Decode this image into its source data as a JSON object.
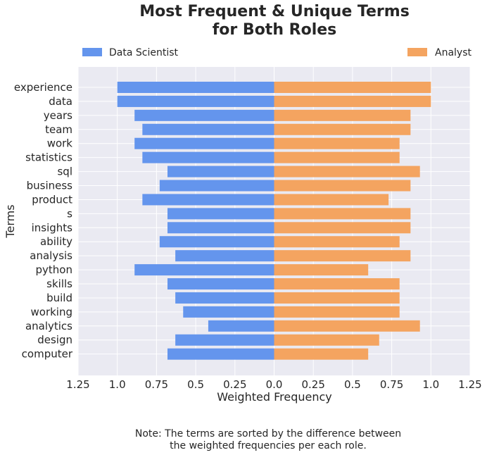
{
  "chart_data": {
    "type": "bar",
    "orientation": "horizontal-diverging",
    "title_lines": [
      "Most Frequent & Unique Terms",
      "for Both Roles"
    ],
    "xlabel": "Weighted Frequency",
    "ylabel": "Terms",
    "xlim": [
      -1.25,
      1.25
    ],
    "x_ticks": [
      -1.25,
      -1.0,
      -0.75,
      -0.5,
      -0.25,
      0.0,
      0.25,
      0.5,
      0.75,
      1.0,
      1.25
    ],
    "x_tick_labels": [
      "1.25",
      "1.0",
      "0.75",
      "0.5",
      "0.25",
      "0.0",
      "0.25",
      "0.5",
      "0.75",
      "1.0",
      "1.25"
    ],
    "grid": true,
    "legend_placement": "top, split left and right",
    "categories": [
      "experience",
      "data",
      "years",
      "team",
      "work",
      "statistics",
      "sql",
      "business",
      "product",
      "s",
      "insights",
      "ability",
      "analysis",
      "python",
      "skills",
      "build",
      "working",
      "analytics",
      "design",
      "computer"
    ],
    "series": [
      {
        "name": "Data Scientist",
        "side": "left",
        "color": "#6495ED",
        "values": [
          1.0,
          1.0,
          0.89,
          0.84,
          0.89,
          0.84,
          0.68,
          0.73,
          0.84,
          0.68,
          0.68,
          0.73,
          0.63,
          0.89,
          0.68,
          0.63,
          0.58,
          0.42,
          0.63,
          0.68
        ]
      },
      {
        "name": "Analyst",
        "side": "right",
        "color": "#F4A460",
        "values": [
          1.0,
          1.0,
          0.87,
          0.87,
          0.8,
          0.8,
          0.93,
          0.87,
          0.73,
          0.87,
          0.87,
          0.8,
          0.87,
          0.6,
          0.8,
          0.8,
          0.8,
          0.93,
          0.67,
          0.6
        ]
      }
    ],
    "note_lines": [
      "Note: The terms are sorted by the difference between",
      "the weighted frequencies per each role."
    ]
  },
  "colors": {
    "plot_background": "#EAEAF2",
    "grid": "#FFFFFF",
    "text": "#262626"
  }
}
